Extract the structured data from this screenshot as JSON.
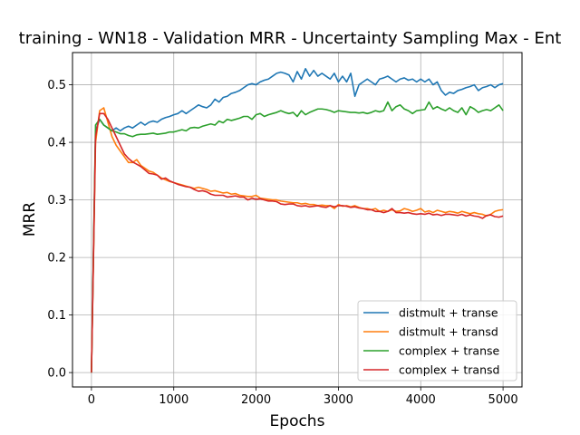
{
  "chart_data": {
    "type": "line",
    "title": "training - WN18 - Validation MRR - Uncertainty Sampling Max - Ent",
    "xlabel": "Epochs",
    "ylabel": "MRR",
    "xlim": [
      -230,
      5230
    ],
    "ylim": [
      -0.025,
      0.556
    ],
    "xticks": [
      0,
      1000,
      2000,
      3000,
      4000,
      5000
    ],
    "yticks": [
      0.0,
      0.1,
      0.2,
      0.3,
      0.4,
      0.5
    ],
    "grid": true,
    "legend_position": "lower-right",
    "series": [
      {
        "name": "distmult + transe",
        "color": "#1f77b4",
        "x": [
          0,
          50,
          100,
          150,
          200,
          250,
          300,
          350,
          400,
          450,
          500,
          550,
          600,
          650,
          700,
          750,
          800,
          850,
          900,
          950,
          1000,
          1050,
          1100,
          1150,
          1200,
          1250,
          1300,
          1350,
          1400,
          1450,
          1500,
          1550,
          1600,
          1650,
          1700,
          1750,
          1800,
          1850,
          1900,
          1950,
          2000,
          2050,
          2100,
          2150,
          2200,
          2250,
          2300,
          2350,
          2400,
          2450,
          2500,
          2550,
          2600,
          2650,
          2700,
          2750,
          2800,
          2850,
          2900,
          2950,
          3000,
          3050,
          3100,
          3150,
          3200,
          3250,
          3300,
          3350,
          3400,
          3450,
          3500,
          3550,
          3600,
          3650,
          3700,
          3750,
          3800,
          3850,
          3900,
          3950,
          4000,
          4050,
          4100,
          4150,
          4200,
          4250,
          4300,
          4350,
          4400,
          4450,
          4500,
          4550,
          4600,
          4650,
          4700,
          4750,
          4800,
          4850,
          4900,
          4950,
          5000
        ],
        "y": [
          0.0,
          0.42,
          0.44,
          0.43,
          0.425,
          0.42,
          0.425,
          0.42,
          0.425,
          0.428,
          0.425,
          0.43,
          0.435,
          0.43,
          0.435,
          0.437,
          0.435,
          0.44,
          0.443,
          0.445,
          0.448,
          0.45,
          0.455,
          0.45,
          0.455,
          0.46,
          0.465,
          0.462,
          0.46,
          0.465,
          0.475,
          0.47,
          0.478,
          0.48,
          0.485,
          0.487,
          0.49,
          0.495,
          0.5,
          0.502,
          0.5,
          0.505,
          0.508,
          0.51,
          0.515,
          0.52,
          0.522,
          0.52,
          0.517,
          0.505,
          0.523,
          0.51,
          0.528,
          0.515,
          0.525,
          0.515,
          0.52,
          0.515,
          0.51,
          0.52,
          0.505,
          0.515,
          0.505,
          0.52,
          0.48,
          0.5,
          0.505,
          0.51,
          0.505,
          0.5,
          0.51,
          0.512,
          0.515,
          0.51,
          0.505,
          0.51,
          0.512,
          0.508,
          0.51,
          0.505,
          0.51,
          0.505,
          0.51,
          0.5,
          0.505,
          0.49,
          0.482,
          0.487,
          0.485,
          0.49,
          0.492,
          0.495,
          0.497,
          0.5,
          0.49,
          0.495,
          0.497,
          0.5,
          0.495,
          0.5,
          0.502
        ]
      },
      {
        "name": "distmult + transd",
        "color": "#ff7f0e",
        "x": [
          0,
          50,
          100,
          150,
          200,
          250,
          300,
          350,
          400,
          450,
          500,
          550,
          600,
          650,
          700,
          750,
          800,
          850,
          900,
          950,
          1000,
          1050,
          1100,
          1150,
          1200,
          1250,
          1300,
          1350,
          1400,
          1450,
          1500,
          1550,
          1600,
          1650,
          1700,
          1750,
          1800,
          1850,
          1900,
          1950,
          2000,
          2050,
          2100,
          2150,
          2200,
          2250,
          2300,
          2350,
          2400,
          2450,
          2500,
          2550,
          2600,
          2650,
          2700,
          2750,
          2800,
          2850,
          2900,
          2950,
          3000,
          3050,
          3100,
          3150,
          3200,
          3250,
          3300,
          3350,
          3400,
          3450,
          3500,
          3550,
          3600,
          3650,
          3700,
          3750,
          3800,
          3850,
          3900,
          3950,
          4000,
          4050,
          4100,
          4150,
          4200,
          4250,
          4300,
          4350,
          4400,
          4450,
          4500,
          4550,
          4600,
          4650,
          4700,
          4750,
          4800,
          4850,
          4900,
          4950,
          5000
        ],
        "y": [
          0.0,
          0.4,
          0.455,
          0.46,
          0.435,
          0.41,
          0.395,
          0.385,
          0.375,
          0.365,
          0.365,
          0.37,
          0.36,
          0.355,
          0.35,
          0.348,
          0.343,
          0.338,
          0.335,
          0.332,
          0.33,
          0.328,
          0.326,
          0.324,
          0.322,
          0.32,
          0.322,
          0.32,
          0.318,
          0.315,
          0.316,
          0.314,
          0.312,
          0.313,
          0.31,
          0.311,
          0.308,
          0.307,
          0.306,
          0.306,
          0.308,
          0.303,
          0.302,
          0.301,
          0.3,
          0.3,
          0.298,
          0.297,
          0.296,
          0.295,
          0.295,
          0.293,
          0.294,
          0.292,
          0.292,
          0.29,
          0.291,
          0.29,
          0.29,
          0.285,
          0.292,
          0.289,
          0.29,
          0.288,
          0.29,
          0.287,
          0.285,
          0.285,
          0.283,
          0.285,
          0.28,
          0.282,
          0.28,
          0.283,
          0.28,
          0.281,
          0.285,
          0.283,
          0.28,
          0.282,
          0.285,
          0.279,
          0.281,
          0.278,
          0.282,
          0.28,
          0.278,
          0.28,
          0.279,
          0.277,
          0.28,
          0.278,
          0.276,
          0.278,
          0.276,
          0.275,
          0.272,
          0.275,
          0.28,
          0.282,
          0.283
        ]
      },
      {
        "name": "complex + transe",
        "color": "#2ca02c",
        "x": [
          0,
          50,
          100,
          150,
          200,
          250,
          300,
          350,
          400,
          450,
          500,
          550,
          600,
          650,
          700,
          750,
          800,
          850,
          900,
          950,
          1000,
          1050,
          1100,
          1150,
          1200,
          1250,
          1300,
          1350,
          1400,
          1450,
          1500,
          1550,
          1600,
          1650,
          1700,
          1750,
          1800,
          1850,
          1900,
          1950,
          2000,
          2050,
          2100,
          2150,
          2200,
          2250,
          2300,
          2350,
          2400,
          2450,
          2500,
          2550,
          2600,
          2650,
          2700,
          2750,
          2800,
          2850,
          2900,
          2950,
          3000,
          3050,
          3100,
          3150,
          3200,
          3250,
          3300,
          3350,
          3400,
          3450,
          3500,
          3550,
          3600,
          3650,
          3700,
          3750,
          3800,
          3850,
          3900,
          3950,
          4000,
          4050,
          4100,
          4150,
          4200,
          4250,
          4300,
          4350,
          4400,
          4450,
          4500,
          4550,
          4600,
          4650,
          4700,
          4750,
          4800,
          4850,
          4900,
          4950,
          5000
        ],
        "y": [
          0.0,
          0.43,
          0.44,
          0.43,
          0.425,
          0.42,
          0.418,
          0.415,
          0.415,
          0.412,
          0.41,
          0.413,
          0.414,
          0.414,
          0.415,
          0.416,
          0.414,
          0.415,
          0.416,
          0.418,
          0.418,
          0.42,
          0.422,
          0.42,
          0.425,
          0.426,
          0.425,
          0.428,
          0.43,
          0.432,
          0.43,
          0.437,
          0.434,
          0.44,
          0.438,
          0.44,
          0.442,
          0.445,
          0.445,
          0.44,
          0.448,
          0.45,
          0.445,
          0.448,
          0.45,
          0.452,
          0.455,
          0.452,
          0.45,
          0.452,
          0.445,
          0.455,
          0.448,
          0.452,
          0.455,
          0.458,
          0.458,
          0.457,
          0.455,
          0.452,
          0.455,
          0.454,
          0.453,
          0.452,
          0.452,
          0.451,
          0.452,
          0.45,
          0.452,
          0.455,
          0.453,
          0.455,
          0.47,
          0.455,
          0.462,
          0.465,
          0.458,
          0.455,
          0.45,
          0.455,
          0.456,
          0.457,
          0.47,
          0.458,
          0.462,
          0.458,
          0.455,
          0.46,
          0.455,
          0.452,
          0.46,
          0.448,
          0.462,
          0.458,
          0.452,
          0.455,
          0.457,
          0.455,
          0.46,
          0.465,
          0.455
        ]
      },
      {
        "name": "complex + transd",
        "color": "#d62728",
        "x": [
          0,
          50,
          100,
          150,
          200,
          250,
          300,
          350,
          400,
          450,
          500,
          550,
          600,
          650,
          700,
          750,
          800,
          850,
          900,
          950,
          1000,
          1050,
          1100,
          1150,
          1200,
          1250,
          1300,
          1350,
          1400,
          1450,
          1500,
          1550,
          1600,
          1650,
          1700,
          1750,
          1800,
          1850,
          1900,
          1950,
          2000,
          2050,
          2100,
          2150,
          2200,
          2250,
          2300,
          2350,
          2400,
          2450,
          2500,
          2550,
          2600,
          2650,
          2700,
          2750,
          2800,
          2850,
          2900,
          2950,
          3000,
          3050,
          3100,
          3150,
          3200,
          3250,
          3300,
          3350,
          3400,
          3450,
          3500,
          3550,
          3600,
          3650,
          3700,
          3750,
          3800,
          3850,
          3900,
          3950,
          4000,
          4050,
          4100,
          4150,
          4200,
          4250,
          4300,
          4350,
          4400,
          4450,
          4500,
          4550,
          4600,
          4650,
          4700,
          4750,
          4800,
          4850,
          4900,
          4950,
          5000
        ],
        "y": [
          0.0,
          0.41,
          0.45,
          0.45,
          0.44,
          0.425,
          0.41,
          0.395,
          0.38,
          0.372,
          0.366,
          0.362,
          0.358,
          0.352,
          0.346,
          0.345,
          0.343,
          0.336,
          0.338,
          0.333,
          0.33,
          0.327,
          0.325,
          0.323,
          0.322,
          0.318,
          0.315,
          0.316,
          0.314,
          0.31,
          0.308,
          0.308,
          0.308,
          0.305,
          0.306,
          0.307,
          0.305,
          0.305,
          0.3,
          0.303,
          0.301,
          0.302,
          0.3,
          0.298,
          0.298,
          0.297,
          0.293,
          0.292,
          0.293,
          0.293,
          0.29,
          0.289,
          0.29,
          0.288,
          0.289,
          0.29,
          0.288,
          0.287,
          0.29,
          0.288,
          0.29,
          0.29,
          0.289,
          0.287,
          0.288,
          0.286,
          0.285,
          0.283,
          0.283,
          0.28,
          0.28,
          0.278,
          0.28,
          0.285,
          0.278,
          0.278,
          0.277,
          0.278,
          0.276,
          0.275,
          0.276,
          0.275,
          0.277,
          0.274,
          0.275,
          0.273,
          0.275,
          0.275,
          0.274,
          0.273,
          0.275,
          0.272,
          0.274,
          0.272,
          0.271,
          0.268,
          0.273,
          0.274,
          0.271,
          0.27,
          0.272
        ]
      }
    ]
  }
}
